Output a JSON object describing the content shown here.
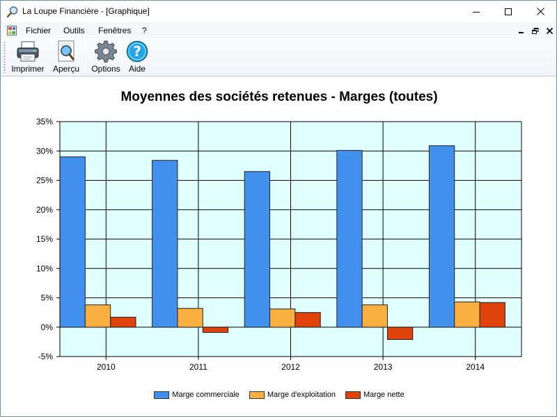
{
  "window": {
    "title": "La Loupe Financière - [Graphique]",
    "minimize_glyph": "—",
    "maximize_glyph": "☐",
    "close_glyph": "✕"
  },
  "menu": {
    "items": [
      "Fichier",
      "Outils",
      "Fenêtres",
      "?"
    ]
  },
  "toolbar": {
    "buttons": [
      {
        "label": "Imprimer",
        "icon": "printer-icon"
      },
      {
        "label": "Aperçu",
        "icon": "preview-icon"
      },
      {
        "label": "Options",
        "icon": "gear-icon"
      },
      {
        "label": "Aide",
        "icon": "help-icon"
      }
    ]
  },
  "colors": {
    "plot_background": "#e0ffff",
    "series": [
      "#4190ee",
      "#f9b040",
      "#e0420c"
    ]
  },
  "chart_data": {
    "type": "bar",
    "title": "Moyennes des sociétés retenues - Marges (toutes)",
    "categories": [
      "2010",
      "2011",
      "2012",
      "2013",
      "2014"
    ],
    "series": [
      {
        "name": "Marge commerciale",
        "values": [
          29.0,
          28.4,
          26.5,
          30.1,
          30.9
        ]
      },
      {
        "name": "Marge d'exploitation",
        "values": [
          3.8,
          3.2,
          3.1,
          3.8,
          4.3
        ]
      },
      {
        "name": "Marge nette",
        "values": [
          1.7,
          -0.9,
          2.5,
          -2.1,
          4.2
        ]
      }
    ],
    "ylim": [
      -5,
      35
    ],
    "yticks": [
      "35%",
      "30%",
      "25%",
      "20%",
      "15%",
      "10%",
      "5%",
      "0%",
      "-5%"
    ],
    "grid": true,
    "legend_position": "bottom"
  }
}
